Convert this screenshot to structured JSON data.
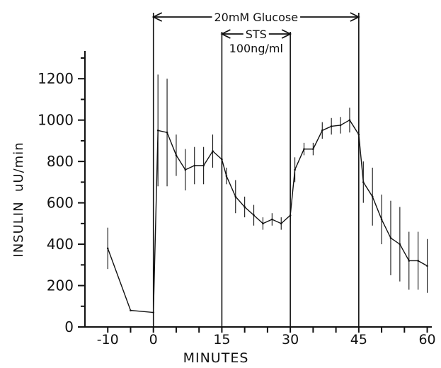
{
  "chart_data": {
    "type": "line",
    "title": "",
    "xlabel": "MINUTES",
    "ylabel": "INSULIN  uU/min",
    "xlim": [
      -15,
      61
    ],
    "ylim": [
      0,
      1300
    ],
    "x_ticks": [
      -10,
      0,
      15,
      30,
      45,
      60
    ],
    "x_tick_labels": [
      "-10",
      "0",
      "15",
      "30",
      "45",
      "60"
    ],
    "y_ticks": [
      0,
      200,
      400,
      600,
      800,
      1000,
      1200
    ],
    "y_tick_labels": [
      "0",
      "200",
      "400",
      "600",
      "800",
      "1000",
      "1200"
    ],
    "grid": false,
    "series": [
      {
        "name": "",
        "x": [
          -10,
          -5,
          0,
          1,
          3,
          5,
          7,
          9,
          11,
          13,
          15,
          16,
          18,
          20,
          22,
          24,
          26,
          28,
          30,
          31,
          33,
          35,
          37,
          39,
          41,
          43,
          45,
          46,
          48,
          50,
          52,
          54,
          56,
          58,
          60
        ],
        "y": [
          380,
          80,
          70,
          950,
          940,
          830,
          760,
          780,
          780,
          850,
          810,
          730,
          630,
          580,
          540,
          500,
          520,
          500,
          540,
          760,
          860,
          860,
          950,
          970,
          975,
          1000,
          930,
          700,
          630,
          520,
          430,
          400,
          320,
          320,
          295
        ],
        "err": [
          100,
          0,
          0,
          270,
          260,
          100,
          100,
          90,
          90,
          80,
          70,
          40,
          80,
          50,
          50,
          30,
          30,
          30,
          40,
          60,
          30,
          30,
          40,
          40,
          40,
          60,
          40,
          100,
          140,
          120,
          180,
          180,
          140,
          140,
          130
        ]
      }
    ],
    "vertical_lines_x": [
      0,
      15,
      30,
      45
    ],
    "annotations": [
      {
        "text": "20mM Glucose",
        "x_start": 0,
        "x_end": 45
      },
      {
        "text": "STS",
        "text2": "100ng/ml",
        "x_start": 15,
        "x_end": 30
      }
    ]
  }
}
